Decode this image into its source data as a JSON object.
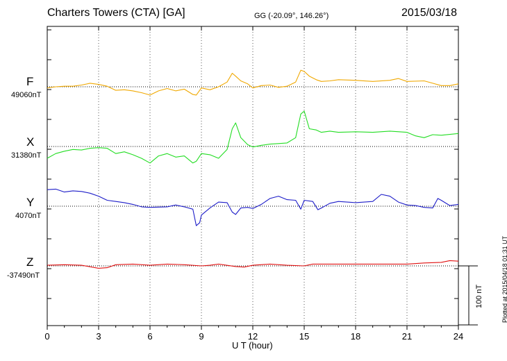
{
  "header": {
    "station": "Charters Towers (CTA)  [GA]",
    "coords": "GG (-20.09°, 146.26°)",
    "date": "2015/03/18"
  },
  "plotted_note": "Plotted at 2015/04/18 01:31  UT",
  "scale_bar_label": "100 nT",
  "chart_data": {
    "type": "line",
    "xlabel": "U T (hour)",
    "xlim": [
      0,
      24
    ],
    "xticks": [
      0,
      3,
      6,
      9,
      12,
      15,
      18,
      21,
      24
    ],
    "scale_bar_nT": 100,
    "grid": true,
    "series": [
      {
        "name": "F",
        "baseline_label": "49060nT",
        "color": "#f0a800",
        "points": [
          [
            0,
            -2
          ],
          [
            0.5,
            0
          ],
          [
            1,
            1
          ],
          [
            1.5,
            1
          ],
          [
            2,
            3
          ],
          [
            2.5,
            6
          ],
          [
            3,
            4
          ],
          [
            3.5,
            1
          ],
          [
            4,
            -6
          ],
          [
            4.5,
            -5
          ],
          [
            5,
            -7
          ],
          [
            5.5,
            -10
          ],
          [
            6,
            -14
          ],
          [
            6.5,
            -7
          ],
          [
            7,
            -3
          ],
          [
            7.5,
            -7
          ],
          [
            8,
            -4
          ],
          [
            8.5,
            -13
          ],
          [
            8.7,
            -14
          ],
          [
            9,
            -2
          ],
          [
            9.5,
            -5
          ],
          [
            10,
            0
          ],
          [
            10.5,
            8
          ],
          [
            10.8,
            23
          ],
          [
            11,
            18
          ],
          [
            11.3,
            10
          ],
          [
            11.7,
            5
          ],
          [
            12,
            -2
          ],
          [
            12.5,
            2
          ],
          [
            13,
            3
          ],
          [
            13.5,
            -1
          ],
          [
            14,
            1
          ],
          [
            14.5,
            8
          ],
          [
            14.8,
            28
          ],
          [
            15,
            26
          ],
          [
            15.3,
            18
          ],
          [
            15.7,
            12
          ],
          [
            16,
            9
          ],
          [
            16.5,
            10
          ],
          [
            17,
            12
          ],
          [
            18,
            11
          ],
          [
            19,
            9
          ],
          [
            20,
            11
          ],
          [
            20.5,
            14
          ],
          [
            21,
            9
          ],
          [
            22,
            10
          ],
          [
            22.5,
            6
          ],
          [
            23,
            2
          ],
          [
            23.5,
            2
          ],
          [
            24,
            5
          ]
        ]
      },
      {
        "name": "X",
        "baseline_label": "31380nT",
        "color": "#22dd22",
        "points": [
          [
            0,
            -20
          ],
          [
            0.5,
            -12
          ],
          [
            1,
            -8
          ],
          [
            1.5,
            -5
          ],
          [
            2,
            -6
          ],
          [
            2.5,
            -3
          ],
          [
            3,
            -2
          ],
          [
            3.5,
            -3
          ],
          [
            4,
            -12
          ],
          [
            4.5,
            -9
          ],
          [
            5,
            -14
          ],
          [
            5.5,
            -20
          ],
          [
            6,
            -28
          ],
          [
            6.5,
            -16
          ],
          [
            7,
            -12
          ],
          [
            7.5,
            -18
          ],
          [
            8,
            -16
          ],
          [
            8.5,
            -28
          ],
          [
            8.7,
            -25
          ],
          [
            9,
            -12
          ],
          [
            9.5,
            -14
          ],
          [
            10,
            -20
          ],
          [
            10.5,
            -5
          ],
          [
            10.8,
            30
          ],
          [
            11,
            40
          ],
          [
            11.3,
            15
          ],
          [
            11.7,
            3
          ],
          [
            12,
            -1
          ],
          [
            12.5,
            2
          ],
          [
            13,
            4
          ],
          [
            13.5,
            5
          ],
          [
            14,
            6
          ],
          [
            14.5,
            15
          ],
          [
            14.8,
            55
          ],
          [
            15,
            60
          ],
          [
            15.3,
            30
          ],
          [
            15.7,
            28
          ],
          [
            16,
            24
          ],
          [
            16.5,
            26
          ],
          [
            17,
            24
          ],
          [
            18,
            25
          ],
          [
            19,
            24
          ],
          [
            20,
            26
          ],
          [
            21,
            24
          ],
          [
            21.5,
            18
          ],
          [
            22,
            15
          ],
          [
            22.5,
            20
          ],
          [
            23,
            19
          ],
          [
            24,
            22
          ]
        ]
      },
      {
        "name": "Y",
        "baseline_label": "4070nT",
        "color": "#1c1cc8",
        "points": [
          [
            0,
            28
          ],
          [
            0.5,
            29
          ],
          [
            1,
            24
          ],
          [
            1.5,
            26
          ],
          [
            2,
            25
          ],
          [
            2.5,
            22
          ],
          [
            3,
            17
          ],
          [
            3.5,
            10
          ],
          [
            4,
            8
          ],
          [
            4.5,
            6
          ],
          [
            5,
            3
          ],
          [
            5.5,
            -1
          ],
          [
            6,
            -2
          ],
          [
            7,
            -1
          ],
          [
            7.5,
            2
          ],
          [
            8,
            -1
          ],
          [
            8.5,
            -5
          ],
          [
            8.7,
            -33
          ],
          [
            8.9,
            -28
          ],
          [
            9,
            -15
          ],
          [
            9.5,
            -3
          ],
          [
            10,
            7
          ],
          [
            10.5,
            6
          ],
          [
            10.8,
            -10
          ],
          [
            11,
            -14
          ],
          [
            11.3,
            -3
          ],
          [
            11.7,
            -2
          ],
          [
            12,
            -4
          ],
          [
            12.5,
            3
          ],
          [
            13,
            13
          ],
          [
            13.5,
            17
          ],
          [
            14,
            11
          ],
          [
            14.5,
            10
          ],
          [
            14.8,
            -5
          ],
          [
            15,
            10
          ],
          [
            15.5,
            8
          ],
          [
            15.8,
            -6
          ],
          [
            16,
            -3
          ],
          [
            16.5,
            5
          ],
          [
            17,
            8
          ],
          [
            18,
            6
          ],
          [
            19,
            8
          ],
          [
            19.5,
            20
          ],
          [
            20,
            17
          ],
          [
            20.5,
            7
          ],
          [
            21,
            2
          ],
          [
            21.5,
            1
          ],
          [
            22,
            -2
          ],
          [
            22.5,
            -3
          ],
          [
            22.8,
            13
          ],
          [
            23,
            10
          ],
          [
            23.5,
            1
          ],
          [
            24,
            3
          ]
        ]
      },
      {
        "name": "Z",
        "baseline_label": "-37490nT",
        "color": "#e01010",
        "points": [
          [
            0,
            1
          ],
          [
            1,
            2
          ],
          [
            2,
            1
          ],
          [
            3,
            -4
          ],
          [
            3.5,
            -3
          ],
          [
            4,
            2
          ],
          [
            5,
            3
          ],
          [
            6,
            1
          ],
          [
            7,
            3
          ],
          [
            8,
            2
          ],
          [
            9,
            0
          ],
          [
            9.5,
            1
          ],
          [
            10,
            3
          ],
          [
            11,
            -1
          ],
          [
            11.5,
            -2
          ],
          [
            12,
            1
          ],
          [
            13,
            3
          ],
          [
            14,
            1
          ],
          [
            15,
            0
          ],
          [
            15.5,
            3
          ],
          [
            16,
            3
          ],
          [
            17,
            3
          ],
          [
            18,
            3
          ],
          [
            19,
            3
          ],
          [
            20,
            3
          ],
          [
            21,
            3
          ],
          [
            22,
            5
          ],
          [
            23,
            6
          ],
          [
            23.5,
            9
          ],
          [
            24,
            8
          ]
        ]
      }
    ]
  }
}
